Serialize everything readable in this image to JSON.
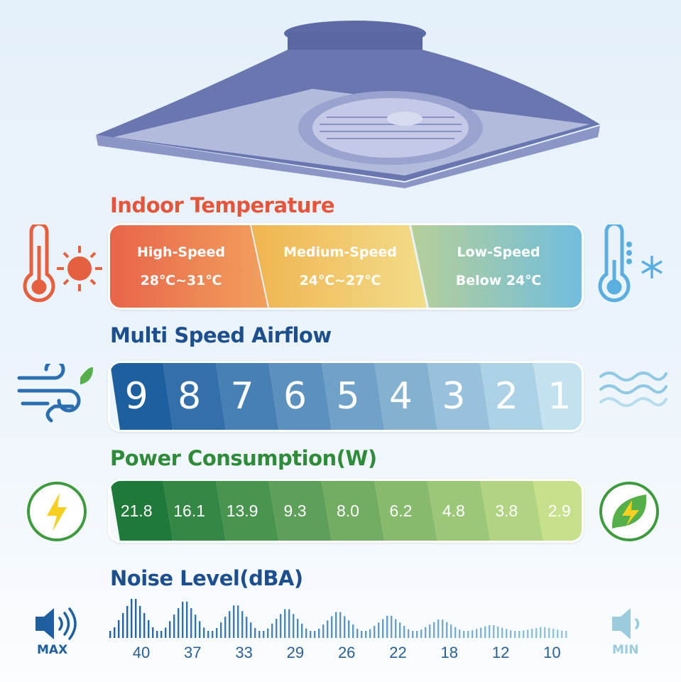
{
  "temperature": {
    "title": "Indoor Temperature",
    "segments": [
      {
        "label": "High-Speed",
        "range": "28℃~31℃"
      },
      {
        "label": "Medium-Speed",
        "range": "24℃~27℃"
      },
      {
        "label": "Low-Speed",
        "range": "Below 24℃"
      }
    ],
    "colors": {
      "title": "#e4553b",
      "high": "#e8704a",
      "medium": "#f0c060",
      "low": "#7cc0dc"
    }
  },
  "airflow": {
    "title": "Multi Speed Airflow",
    "speeds": [
      "9",
      "8",
      "7",
      "6",
      "5",
      "4",
      "3",
      "2",
      "1"
    ],
    "colors": {
      "title": "#1d4f8f",
      "start": "#1e5fa0",
      "end": "#c2e2ef"
    }
  },
  "power": {
    "title": "Power Consumption(W)",
    "values": [
      "21.8",
      "16.1",
      "13.9",
      "9.3",
      "8.0",
      "6.2",
      "4.8",
      "3.8",
      "2.9"
    ],
    "colors": {
      "title": "#2e8b3a",
      "start": "#1f7a3a",
      "end": "#c6e08c"
    }
  },
  "noise": {
    "title": "Noise Level(dBA)",
    "values": [
      "40",
      "37",
      "33",
      "29",
      "26",
      "22",
      "18",
      "12",
      "10"
    ],
    "max_label": "MAX",
    "min_label": "MIN",
    "colors": {
      "max": "#1f5f9e",
      "min": "#9ccbdd"
    }
  },
  "icons": [
    "fan-image",
    "thermometer-hot-icon",
    "sun-icon",
    "thermometer-cold-icon",
    "snowflake-icon",
    "wind-leaf-icon",
    "waves-icon",
    "lightning-icon",
    "eco-lightning-icon",
    "speaker-max-icon",
    "speaker-min-icon"
  ]
}
